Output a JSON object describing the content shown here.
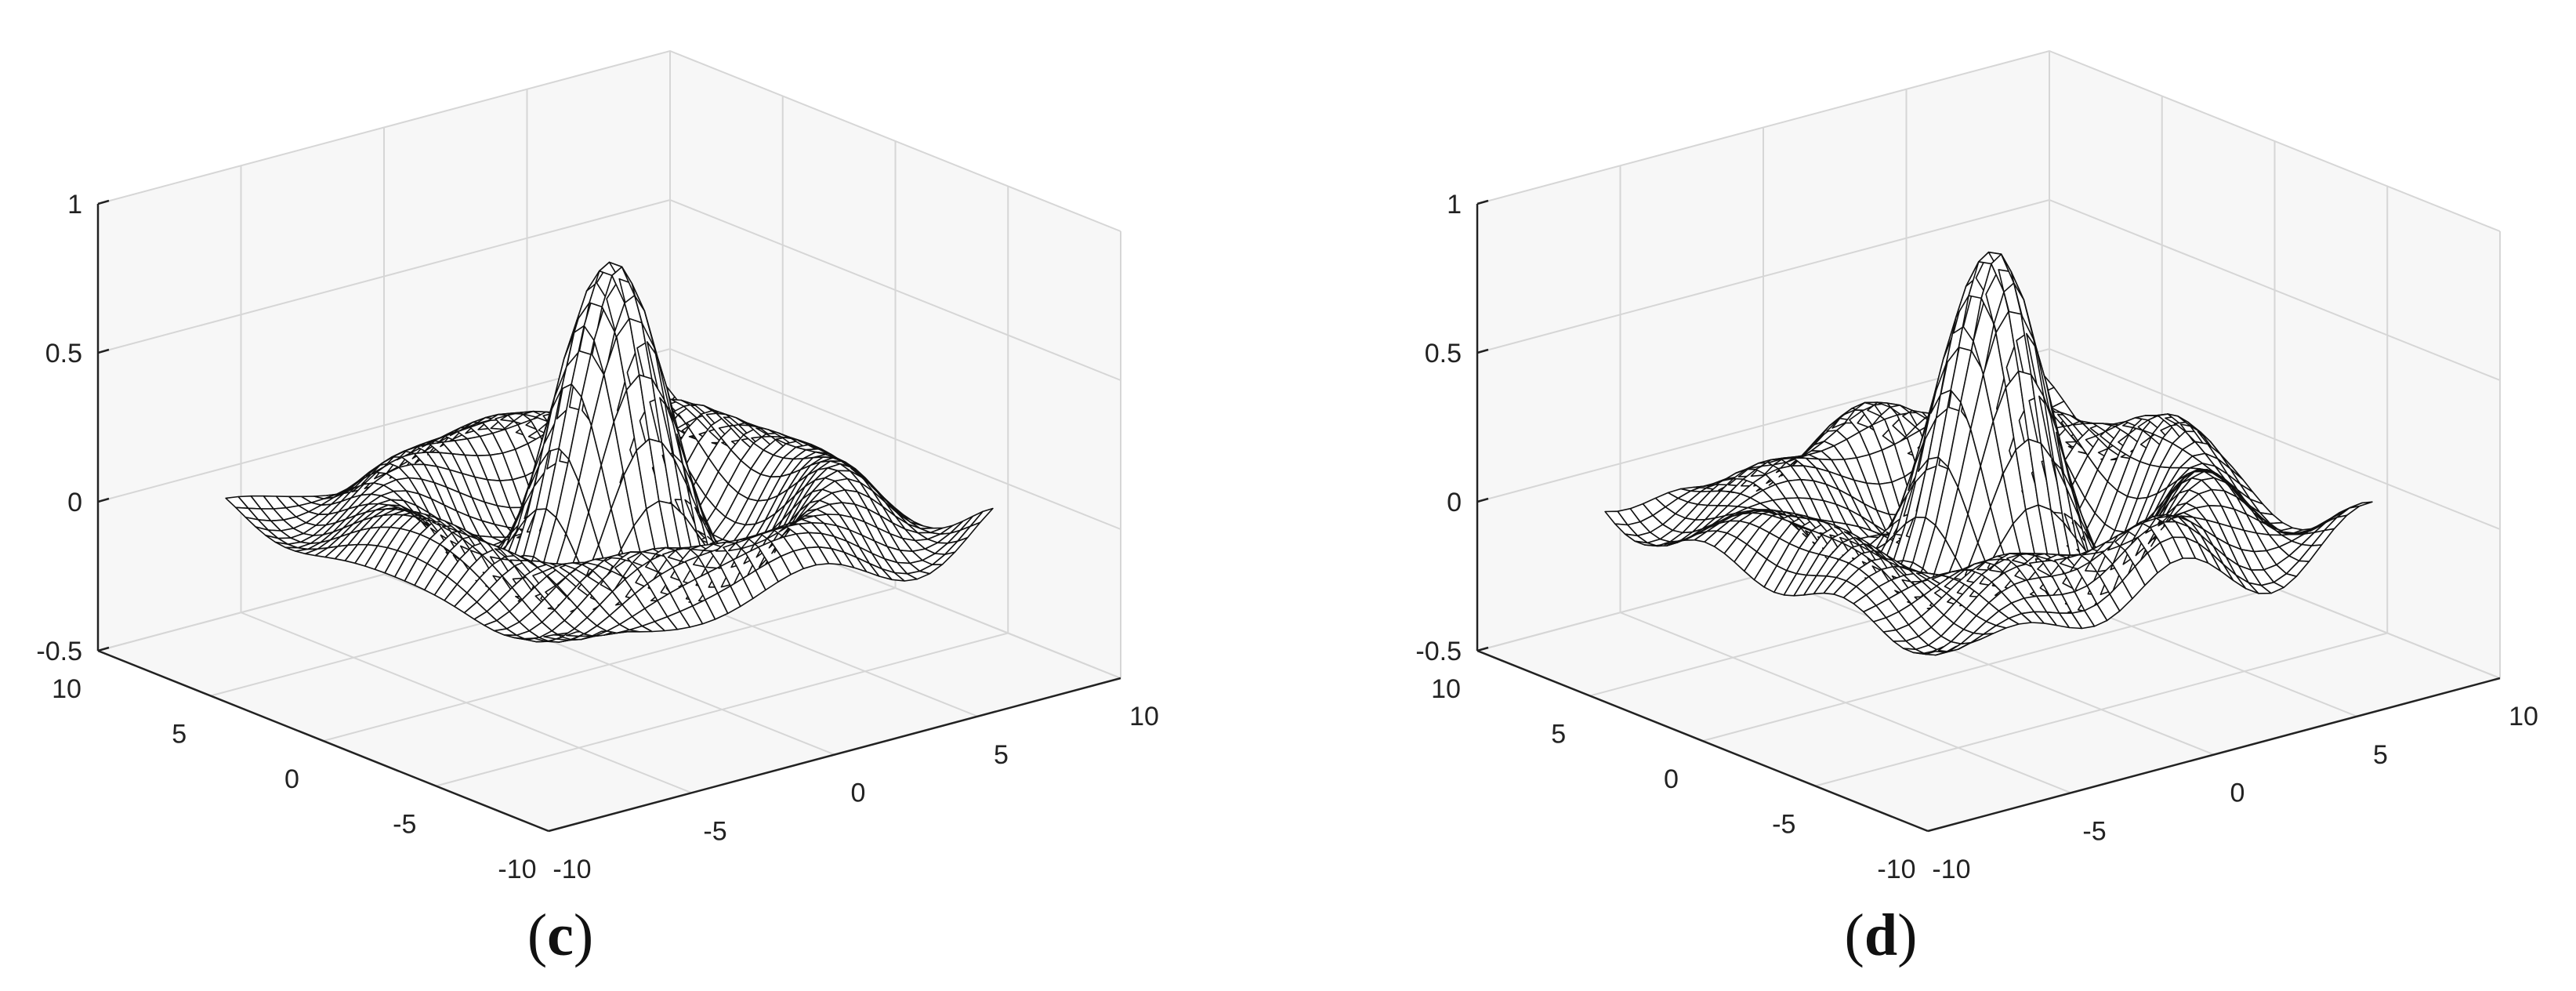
{
  "chart_data": [
    {
      "type": "surface",
      "panel_label": "c",
      "xticks": [
        "-10",
        "-5",
        "0",
        "5",
        "10"
      ],
      "yticks": [
        "-10",
        "-5",
        "0",
        "5",
        "10"
      ],
      "zticks": [
        "-0.5",
        "0",
        "0.5",
        "1"
      ],
      "xlim": [
        -10,
        10
      ],
      "ylim": [
        -10,
        10
      ],
      "zlim": [
        -0.5,
        1
      ],
      "grid": true,
      "peak_z": 0.85,
      "surface_style": "wireframe mesh, black lines on white",
      "background": "#f7f7f7"
    },
    {
      "type": "surface",
      "panel_label": "d",
      "xticks": [
        "-10",
        "-5",
        "0",
        "5",
        "10"
      ],
      "yticks": [
        "-10",
        "-5",
        "0",
        "5",
        "10"
      ],
      "zticks": [
        "-0.5",
        "0",
        "0.5",
        "1"
      ],
      "xlim": [
        -10,
        10
      ],
      "ylim": [
        -10,
        10
      ],
      "zlim": [
        -0.5,
        1
      ],
      "grid": true,
      "peak_z": 0.85,
      "surface_style": "wireframe mesh, black lines on white",
      "background": "#f7f7f7"
    }
  ]
}
